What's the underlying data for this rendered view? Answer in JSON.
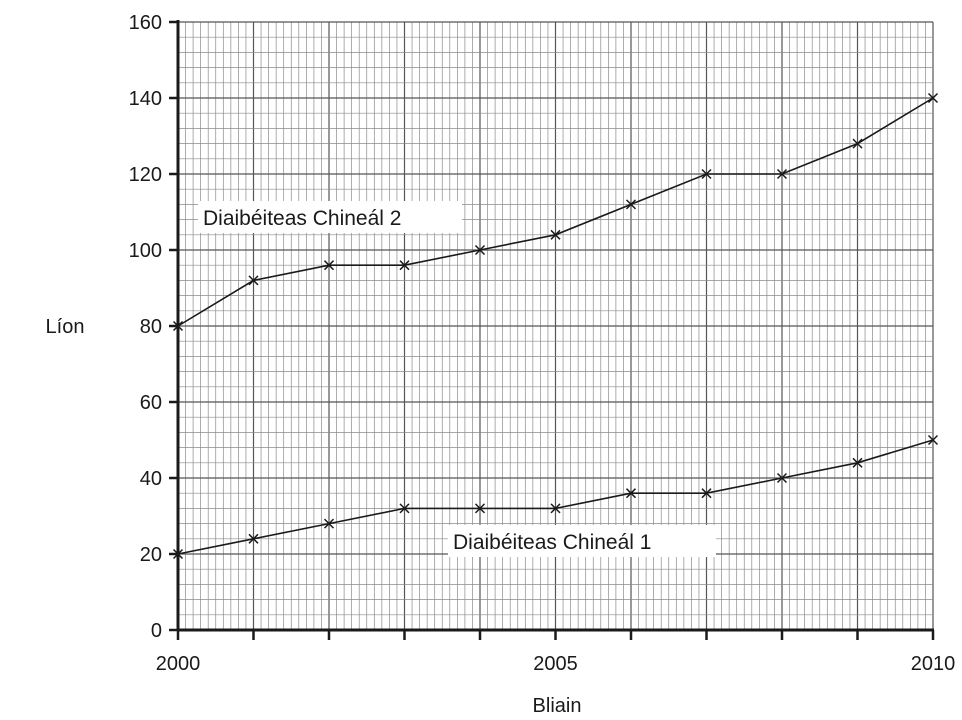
{
  "chart_data": {
    "type": "line",
    "title": "",
    "xlabel": "Bliain",
    "ylabel": "Líon",
    "x": [
      2000,
      2001,
      2002,
      2003,
      2004,
      2005,
      2006,
      2007,
      2008,
      2009,
      2010
    ],
    "xticks": [
      "2000",
      "2005",
      "2010"
    ],
    "yticks": [
      "0",
      "20",
      "40",
      "60",
      "80",
      "100",
      "120",
      "140",
      "160"
    ],
    "xlim": [
      2000,
      2010
    ],
    "ylim": [
      0,
      160
    ],
    "grid": true,
    "series": [
      {
        "name": "Diaibéiteas Chineál 2",
        "values": [
          80,
          92,
          96,
          96,
          100,
          104,
          112,
          120,
          120,
          128,
          140
        ]
      },
      {
        "name": "Diaibéiteas Chineál 1",
        "values": [
          20,
          24,
          28,
          32,
          32,
          32,
          36,
          36,
          40,
          44,
          50
        ]
      }
    ],
    "colors": {
      "line": "#1a1a1a",
      "grid_minor": "#8a8a8a",
      "grid_major": "#555555"
    }
  }
}
